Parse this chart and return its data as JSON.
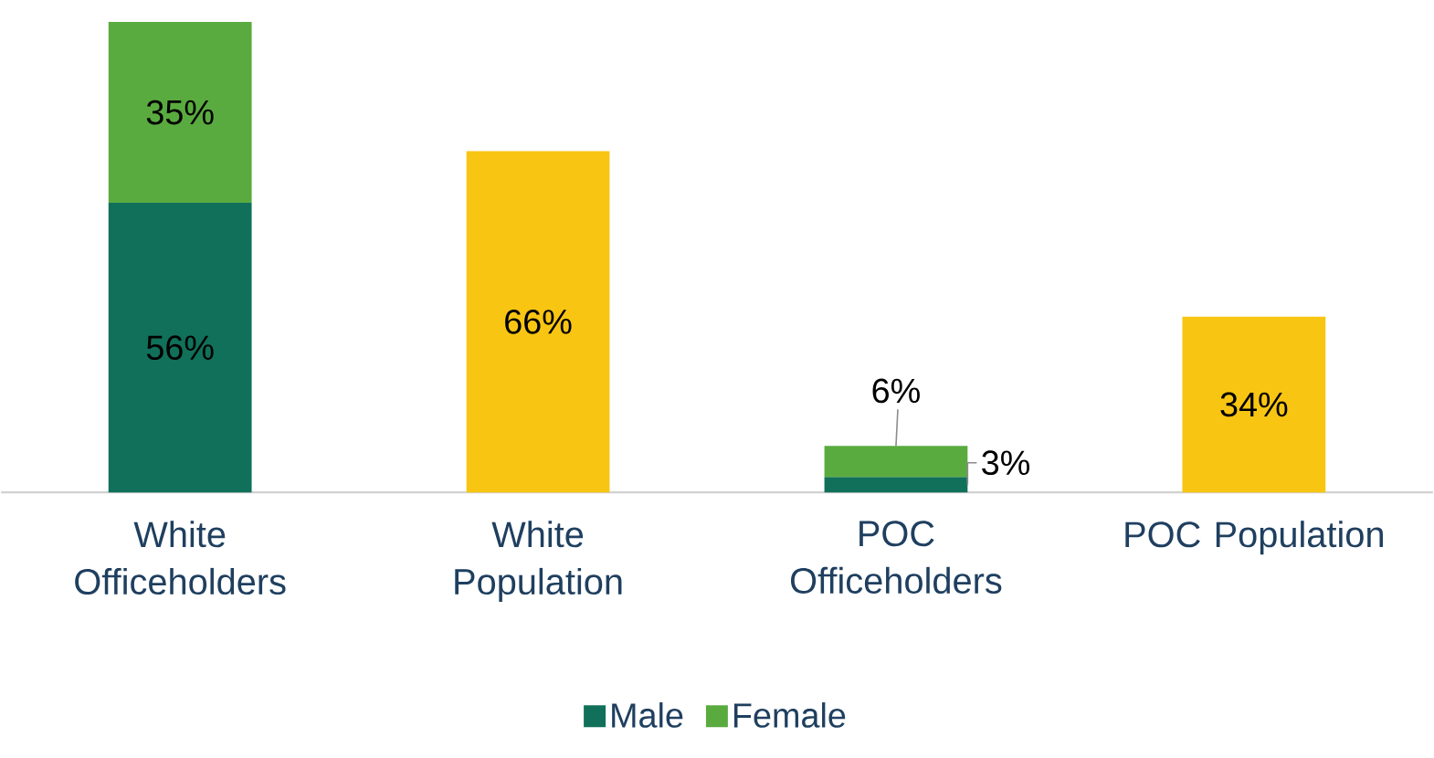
{
  "chart_data": {
    "type": "bar",
    "stacked": true,
    "categories": [
      "White Officeholders",
      "White Population",
      "POC Officeholders",
      "POC Population"
    ],
    "series": [
      {
        "name": "Male",
        "color": "#11705a",
        "values": [
          56,
          null,
          3,
          null
        ],
        "value_labels": [
          "56%",
          null,
          "3%",
          null
        ]
      },
      {
        "name": "Female",
        "color": "#5aab3f",
        "values": [
          35,
          null,
          6,
          null
        ],
        "value_labels": [
          "35%",
          null,
          "6%",
          null
        ]
      },
      {
        "color": "#f8c512",
        "values": [
          null,
          66,
          null,
          34
        ],
        "value_labels": [
          null,
          "66%",
          null,
          "34%"
        ]
      }
    ],
    "tick_labels": "x",
    "legend": "bottom"
  }
}
